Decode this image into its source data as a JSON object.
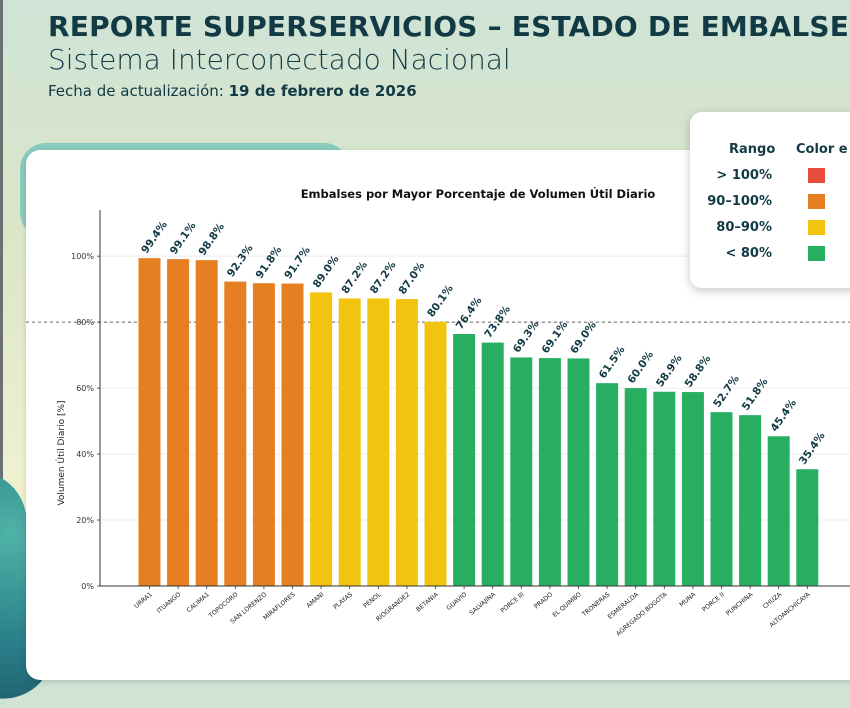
{
  "header": {
    "title": "REPORTE SUPERSERVICIOS – ESTADO DE EMBALSES",
    "subtitle": "Sistema Interconectado Nacional",
    "date_label": "Fecha de actualización:",
    "date_value": "19 de febrero de 2026"
  },
  "legend": {
    "range_header": "Rango",
    "color_header": "Color e",
    "items": [
      {
        "label": "> 100%",
        "color": "#e74c3c"
      },
      {
        "label": "90–100%",
        "color": "#e67e22"
      },
      {
        "label": "80–90%",
        "color": "#f1c40f"
      },
      {
        "label": "< 80%",
        "color": "#27ae60"
      }
    ]
  },
  "chart_data": {
    "type": "bar",
    "title": "Embalses por Mayor Porcentaje de Volumen Útil Diario",
    "xlabel": "",
    "ylabel": "Volumen Útil Diario [%]",
    "ylim": [
      0,
      114
    ],
    "yticks": [
      0,
      20,
      40,
      60,
      80,
      100
    ],
    "ytick_labels": [
      "0%",
      "20%",
      "40%",
      "60%",
      "80%",
      "100%"
    ],
    "reference_line": 80,
    "categories": [
      "URRA1",
      "ITUANGO",
      "CALIMA1",
      "TOPOCORO",
      "SAN LORENZO",
      "MIRAFLORES",
      "AMANI",
      "PLAYAS",
      "PENOL",
      "RIOGRANDE2",
      "BETANIA",
      "GUAVIO",
      "SALVAJINA",
      "PORCE III",
      "PRADO",
      "EL QUIMBO",
      "TRONERAS",
      "ESMERALDA",
      "AGREGADO BOGOTA",
      "MUNA",
      "PORCE II",
      "PUNCHINA",
      "CHUZA",
      "ALTOANCHICAYA"
    ],
    "values": [
      99.4,
      99.1,
      98.8,
      92.3,
      91.8,
      91.7,
      89.0,
      87.2,
      87.2,
      87.0,
      80.1,
      76.4,
      73.8,
      69.3,
      69.1,
      69.0,
      61.5,
      60.0,
      58.9,
      58.8,
      52.7,
      51.8,
      45.4,
      35.4
    ],
    "value_labels": [
      "99.4%",
      "99.1%",
      "98.8%",
      "92.3%",
      "91.8%",
      "91.7%",
      "89.0%",
      "87.2%",
      "87.2%",
      "87.0%",
      "80.1%",
      "76.4%",
      "73.8%",
      "69.3%",
      "69.1%",
      "69.0%",
      "61.5%",
      "60.0%",
      "58.9%",
      "58.8%",
      "52.7%",
      "51.8%",
      "45.4%",
      "35.4%"
    ],
    "colors": [
      "#e67e22",
      "#e67e22",
      "#e67e22",
      "#e67e22",
      "#e67e22",
      "#e67e22",
      "#f1c40f",
      "#f1c40f",
      "#f1c40f",
      "#f1c40f",
      "#f1c40f",
      "#27ae60",
      "#27ae60",
      "#27ae60",
      "#27ae60",
      "#27ae60",
      "#27ae60",
      "#27ae60",
      "#27ae60",
      "#27ae60",
      "#27ae60",
      "#27ae60",
      "#27ae60",
      "#27ae60"
    ]
  }
}
